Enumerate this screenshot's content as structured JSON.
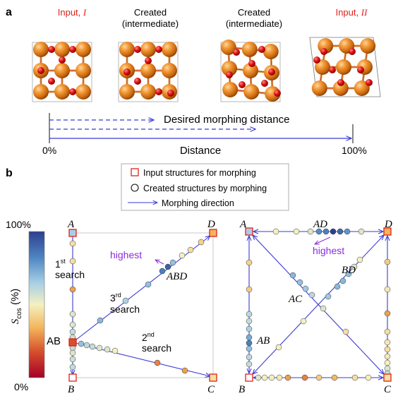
{
  "panel_a": {
    "label": "a",
    "captions": [
      {
        "text": "Input, ",
        "roman": "I",
        "color": "#e0201b"
      },
      {
        "line1": "Created",
        "line2": "(intermediate)"
      },
      {
        "line1": "Created",
        "line2": "(intermediate)"
      },
      {
        "text": "Input, ",
        "roman": "II",
        "color": "#e0201b"
      }
    ],
    "desired_label": "Desired morphing distance",
    "distance_label": "Distance",
    "start_label": "0%",
    "end_label": "100%"
  },
  "panel_b": {
    "label": "b",
    "legend": {
      "items": [
        {
          "marker": "square",
          "text": "Input structures for morphing"
        },
        {
          "marker": "circle",
          "text": "Created structures by morphing"
        },
        {
          "marker": "arrow",
          "text": "Morphing direction"
        }
      ]
    },
    "colorbar": {
      "top_label": "100%",
      "bottom_label": "0%",
      "axis_main": "S",
      "axis_sub": "cos",
      "axis_unit": " (%)",
      "stops": [
        "#2c3f8f",
        "#4f86c2",
        "#a6cfe6",
        "#f4f0c0",
        "#f3b45a",
        "#d6502e",
        "#a50026"
      ]
    },
    "left_plot": {
      "vertices": {
        "A": "A",
        "B": "B",
        "C": "C",
        "D": "D"
      },
      "labels": {
        "first": "1",
        "first_sup": "st",
        "search": "search",
        "second": "2",
        "second_sup": "nd",
        "third": "3",
        "third_sup": "rd",
        "highest": "highest",
        "ABD": "ABD",
        "AB": "AB"
      }
    },
    "right_plot": {
      "vertices": {
        "A": "A",
        "B": "B",
        "C": "C",
        "D": "D"
      },
      "labels": {
        "AD": "AD",
        "highest": "highest",
        "BD": "BD",
        "AC": "AC",
        "AB": "AB"
      }
    },
    "colors": {
      "accent": "#3b3bd6",
      "input_square": "#e0201b",
      "highest": "#8a2be2"
    }
  }
}
